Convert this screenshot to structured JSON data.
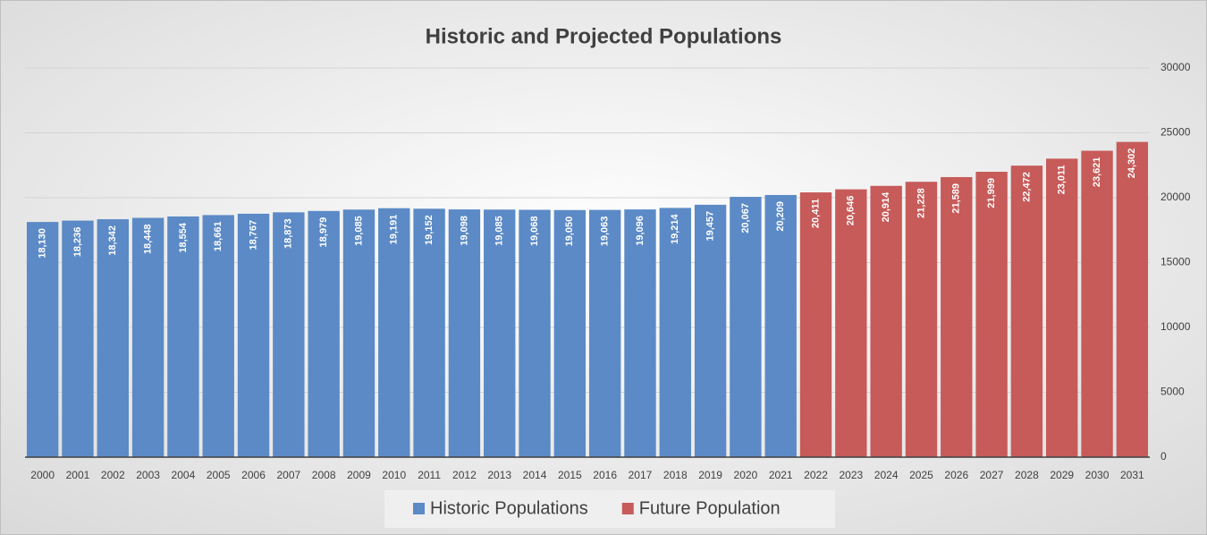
{
  "chart_data": {
    "type": "bar",
    "title": "Historic and Projected Populations",
    "categories": [
      "2000",
      "2001",
      "2002",
      "2003",
      "2004",
      "2005",
      "2006",
      "2007",
      "2008",
      "2009",
      "2010",
      "2011",
      "2012",
      "2013",
      "2014",
      "2015",
      "2016",
      "2017",
      "2018",
      "2019",
      "2020",
      "2021",
      "2022",
      "2023",
      "2024",
      "2025",
      "2026",
      "2027",
      "2028",
      "2029",
      "2030",
      "2031"
    ],
    "series": [
      {
        "name": "Historic Populations",
        "color": "#5b8ac6",
        "values": [
          18130,
          18236,
          18342,
          18448,
          18554,
          18661,
          18767,
          18873,
          18979,
          19085,
          19191,
          19152,
          19098,
          19085,
          19068,
          19050,
          19063,
          19096,
          19214,
          19457,
          20067,
          20209,
          null,
          null,
          null,
          null,
          null,
          null,
          null,
          null,
          null,
          null
        ],
        "value_labels": [
          "18,130",
          "18,236",
          "18,342",
          "18,448",
          "18,554",
          "18,661",
          "18,767",
          "18,873",
          "18,979",
          "19,085",
          "19,191",
          "19,152",
          "19,098",
          "19,085",
          "19,068",
          "19,050",
          "19,063",
          "19,096",
          "19,214",
          "19,457",
          "20,067",
          "20,209",
          null,
          null,
          null,
          null,
          null,
          null,
          null,
          null,
          null,
          null
        ]
      },
      {
        "name": "Future Population",
        "color": "#c65b59",
        "values": [
          null,
          null,
          null,
          null,
          null,
          null,
          null,
          null,
          null,
          null,
          null,
          null,
          null,
          null,
          null,
          null,
          null,
          null,
          null,
          null,
          null,
          null,
          20411,
          20646,
          20914,
          21228,
          21589,
          21999,
          22472,
          23011,
          23621,
          24302
        ],
        "value_labels": [
          null,
          null,
          null,
          null,
          null,
          null,
          null,
          null,
          null,
          null,
          null,
          null,
          null,
          null,
          null,
          null,
          null,
          null,
          null,
          null,
          null,
          null,
          "20,411",
          "20,646",
          "20,914",
          "21,228",
          "21,589",
          "21,999",
          "22,472",
          "23,011",
          "23,621",
          "24,302"
        ]
      }
    ],
    "ylim": [
      0,
      30000
    ],
    "yticks": [
      0,
      5000,
      10000,
      15000,
      20000,
      25000,
      30000
    ],
    "y_axis_side": "right",
    "grid": true,
    "legend": "bottom"
  }
}
